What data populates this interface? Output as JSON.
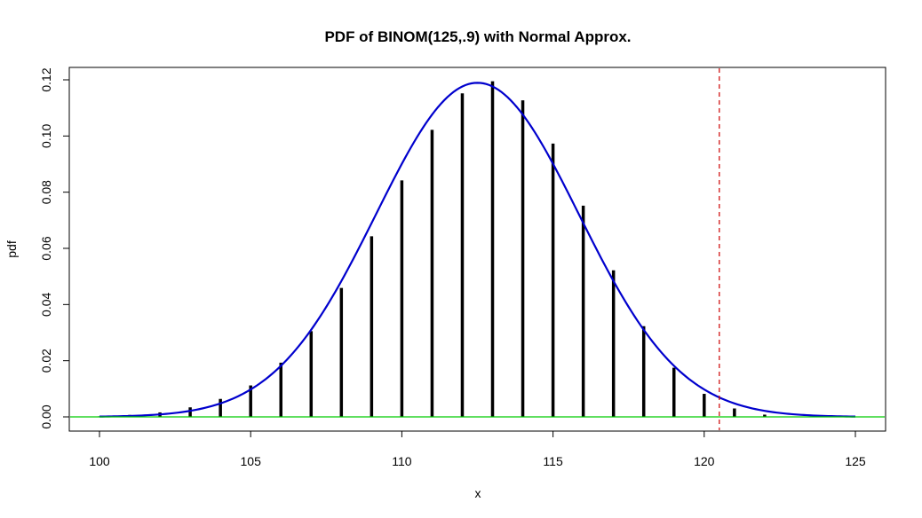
{
  "chart_data": {
    "type": "line",
    "title": "PDF of BINOM(125,.9) with Normal Approx.",
    "xlabel": "x",
    "ylabel": "pdf",
    "xlim": [
      100,
      125
    ],
    "ylim": [
      0,
      0.12
    ],
    "x_ticks": [
      100,
      105,
      110,
      115,
      120,
      125
    ],
    "x_tick_labels": [
      "100",
      "105",
      "110",
      "115",
      "120",
      "125"
    ],
    "y_ticks": [
      0,
      0.02,
      0.04,
      0.06,
      0.08,
      0.1,
      0.12
    ],
    "y_tick_labels": [
      "0.00",
      "0.02",
      "0.04",
      "0.06",
      "0.08",
      "0.10",
      "0.12"
    ],
    "series": [
      {
        "style": "spikes",
        "color": "#000000",
        "x": [
          100,
          101,
          102,
          103,
          104,
          105,
          106,
          107,
          108,
          109,
          110,
          111,
          112,
          113,
          114,
          115,
          116,
          117,
          118,
          119,
          120,
          121,
          122,
          123,
          124,
          125
        ],
        "values": [
          0.0002,
          0.0007,
          0.0016,
          0.0034,
          0.0064,
          0.0112,
          0.0193,
          0.0305,
          0.0459,
          0.0643,
          0.0842,
          0.1022,
          0.1152,
          0.1195,
          0.1127,
          0.0973,
          0.0752,
          0.0522,
          0.0323,
          0.0175,
          0.0082,
          0.003,
          0.0008,
          0.0001,
          0.0,
          0.0
        ]
      },
      {
        "style": "curve",
        "color": "#0000cd",
        "distribution": "normal",
        "mean": 112.5,
        "sd": 3.354
      },
      {
        "style": "hline",
        "color": "#00cc00",
        "y": 0
      },
      {
        "style": "vline",
        "color": "#cc0000",
        "dash": "dashed",
        "x": 120.5
      }
    ],
    "grid": false,
    "legend": "none"
  }
}
